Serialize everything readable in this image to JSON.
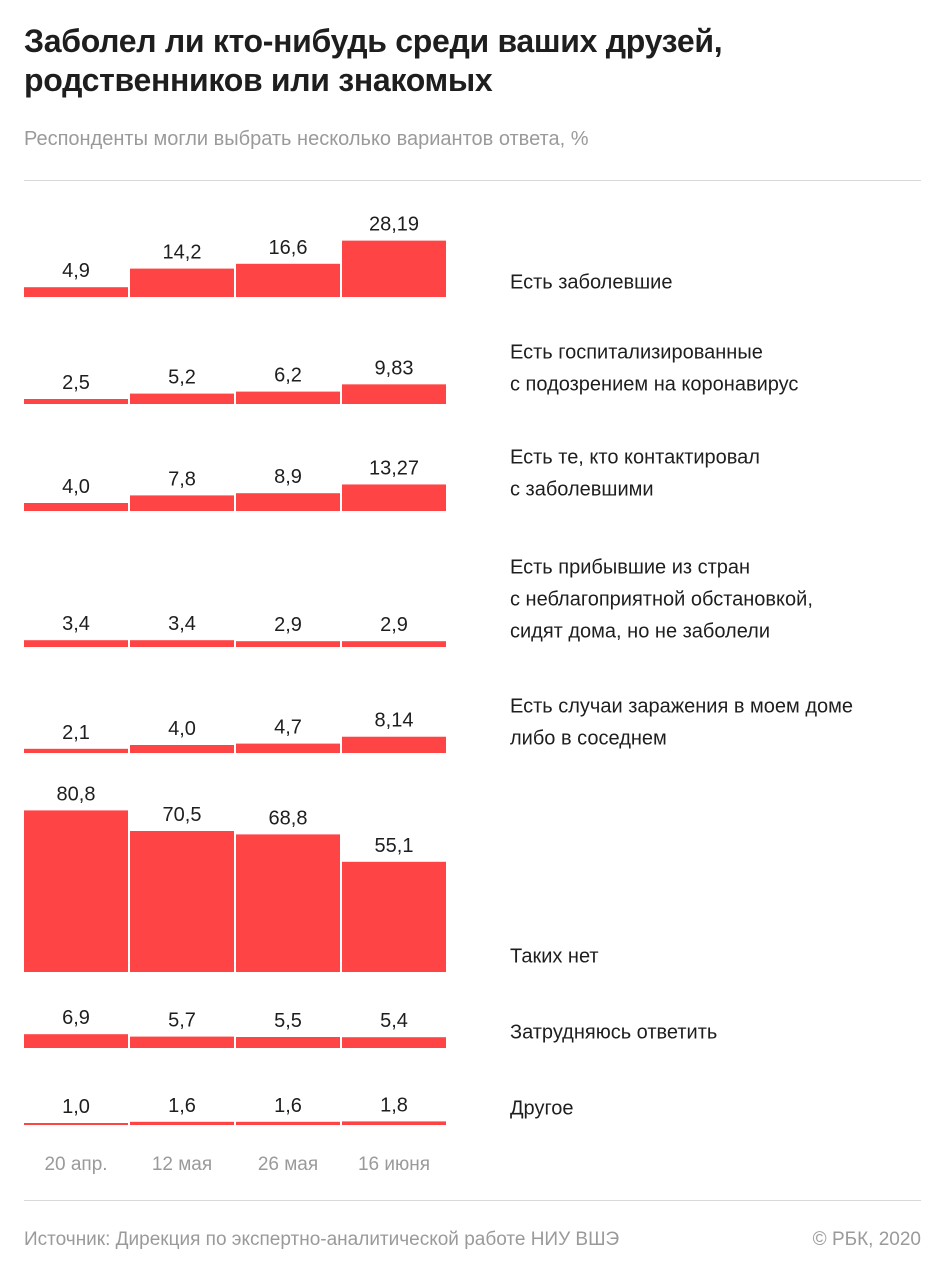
{
  "header": {
    "title": "Заболел ли кто-нибудь среди ваших друзей, родственников или знакомых",
    "subtitle": "Респонденты могли выбрать несколько вариантов ответа, %"
  },
  "footer": {
    "source": "Источник: Дирекция по экспертно-аналитической работе НИУ ВШЭ",
    "copyright": "© РБК, 2020"
  },
  "colors": {
    "bar": "#ff4446",
    "text": "#1e1e1e",
    "muted": "#9a9a9a",
    "rule": "#d9d9d9"
  },
  "chart_data": {
    "type": "bar",
    "title": "Заболел ли кто-нибудь среди ваших друзей, родственников или знакомых",
    "subtitle": "Респонденты могли выбрать несколько вариантов ответа, %",
    "categories": [
      "20 апр.",
      "12 мая",
      "26 мая",
      "16 июня"
    ],
    "unit": "%",
    "grid": false,
    "series": [
      {
        "name": "Есть заболевшие",
        "lines": [
          "Есть заболевшие"
        ],
        "values": [
          4.9,
          14.2,
          16.6,
          28.19
        ],
        "labels": [
          "4,9",
          "14,2",
          "16,6",
          "28,19"
        ]
      },
      {
        "name": "Есть госпитализированные с подозрением на коронавирус",
        "lines": [
          "Есть госпитализированные",
          "с подозрением на коронавирус"
        ],
        "values": [
          2.5,
          5.2,
          6.2,
          9.83
        ],
        "labels": [
          "2,5",
          "5,2",
          "6,2",
          "9,83"
        ]
      },
      {
        "name": "Есть те, кто контактировал с заболевшими",
        "lines": [
          "Есть те, кто контактировал",
          "с заболевшими"
        ],
        "values": [
          4.0,
          7.8,
          8.9,
          13.27
        ],
        "labels": [
          "4,0",
          "7,8",
          "8,9",
          "13,27"
        ]
      },
      {
        "name": "Есть прибывшие из стран с неблагоприятной обстановкой, сидят дома, но не заболели",
        "lines": [
          "Есть прибывшие из стран",
          "с неблагоприятной обстановкой,",
          "сидят дома, но не заболели"
        ],
        "values": [
          3.4,
          3.4,
          2.9,
          2.9
        ],
        "labels": [
          "3,4",
          "3,4",
          "2,9",
          "2,9"
        ]
      },
      {
        "name": "Есть случаи заражения в моем доме либо в соседнем",
        "lines": [
          "Есть случаи заражения в моем доме",
          "либо в соседнем"
        ],
        "values": [
          2.1,
          4.0,
          4.7,
          8.14
        ],
        "labels": [
          "2,1",
          "4,0",
          "4,7",
          "8,14"
        ]
      },
      {
        "name": "Таких нет",
        "lines": [
          "Таких нет"
        ],
        "values": [
          80.8,
          70.5,
          68.8,
          55.1
        ],
        "labels": [
          "80,8",
          "70,5",
          "68,8",
          "55,1"
        ]
      },
      {
        "name": "Затрудняюсь ответить",
        "lines": [
          "Затрудняюсь ответить"
        ],
        "values": [
          6.9,
          5.7,
          5.5,
          5.4
        ],
        "labels": [
          "6,9",
          "5,7",
          "5,5",
          "5,4"
        ]
      },
      {
        "name": "Другое",
        "lines": [
          "Другое"
        ],
        "values": [
          1.0,
          1.6,
          1.6,
          1.8
        ],
        "labels": [
          "1,0",
          "1,6",
          "1,6",
          "1,8"
        ]
      }
    ]
  }
}
